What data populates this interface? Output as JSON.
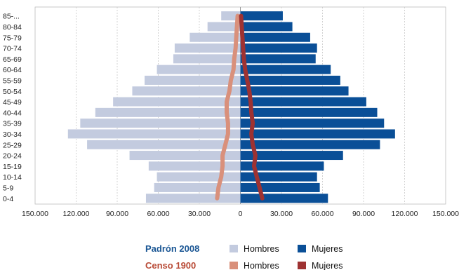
{
  "chart_data": {
    "type": "bar",
    "orientation": "horizontal-population-pyramid",
    "categories": [
      "0-4",
      "5-9",
      "10-14",
      "15-19",
      "20-24",
      "25-29",
      "30-34",
      "35-39",
      "40-44",
      "45-49",
      "50-54",
      "55-59",
      "60-64",
      "65-69",
      "70-74",
      "75-79",
      "80-84",
      "85-..."
    ],
    "series": [
      {
        "name": "Hombres",
        "group": "Padrón 2008",
        "side": "left",
        "kind": "bar",
        "color": "#c3cbdf",
        "values": [
          69000,
          63000,
          61000,
          67000,
          81000,
          112000,
          126000,
          117000,
          106000,
          93000,
          79000,
          70000,
          61000,
          49000,
          48000,
          37000,
          24000,
          14000
        ]
      },
      {
        "name": "Mujeres",
        "group": "Padrón 2008",
        "side": "right",
        "kind": "bar",
        "color": "#0a4f97",
        "values": [
          64000,
          58000,
          56000,
          61000,
          75000,
          102000,
          113000,
          105000,
          100000,
          92000,
          79000,
          73000,
          66000,
          55000,
          56000,
          51000,
          38000,
          31000
        ]
      },
      {
        "name": "Hombres",
        "group": "Censo 1900",
        "side": "left",
        "kind": "line",
        "color": "#d9907b",
        "values": [
          17000,
          16000,
          14000,
          13000,
          13000,
          11000,
          9000,
          9000,
          10000,
          10000,
          8000,
          7000,
          5000,
          4500,
          3500,
          3000,
          2500,
          2000
        ]
      },
      {
        "name": "Mujeres",
        "group": "Censo 1900",
        "side": "right",
        "kind": "line",
        "color": "#9e3232",
        "values": [
          16000,
          14000,
          12000,
          10000,
          11000,
          9000,
          8000,
          9000,
          8000,
          7500,
          6500,
          5000,
          3500,
          2500,
          2000,
          1500,
          1000,
          500
        ]
      }
    ],
    "x_ticks": [
      "150.000",
      "120.000",
      "90.000",
      "60.000",
      "30.000",
      "0",
      "30.000",
      "60.000",
      "90.000",
      "120.000",
      "150.000"
    ],
    "xlim": [
      -150000,
      150000
    ],
    "grid": "vertical-dashed",
    "legend_position": "bottom-center",
    "legend": [
      {
        "title": "Padrón 2008",
        "title_color": "#1a5694",
        "items": [
          {
            "label": "Hombres",
            "color": "#c3cbdf"
          },
          {
            "label": "Mujeres",
            "color": "#0a4f97"
          }
        ]
      },
      {
        "title": "Censo 1900",
        "title_color": "#b84a36",
        "items": [
          {
            "label": "Hombres",
            "color": "#d9907b"
          },
          {
            "label": "Mujeres",
            "color": "#9e3232"
          }
        ]
      }
    ]
  }
}
